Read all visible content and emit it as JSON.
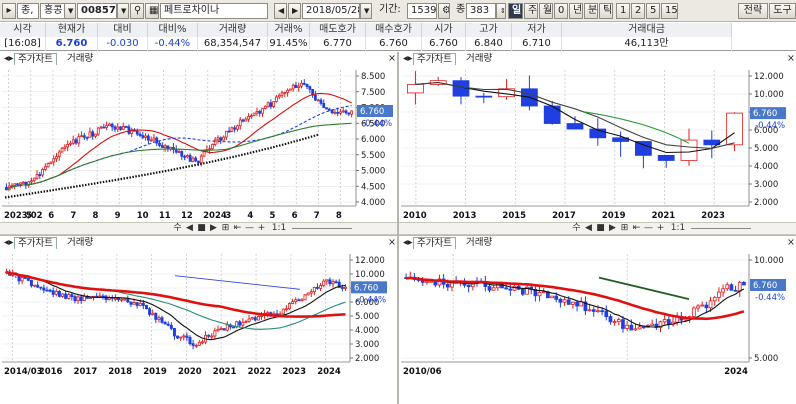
{
  "toolbar": {
    "market_tab": "종,",
    "region": "홍콩",
    "code": "00857",
    "stock_name": "페트로차이나",
    "date": "2018/05/28",
    "period_label": "기간:",
    "period_value": "1539",
    "count_label": "종",
    "count_value": "383",
    "periods": [
      "일",
      "주",
      "월",
      "0",
      "년",
      "분",
      "틱"
    ],
    "minutes": [
      "1",
      "2",
      "5",
      "15"
    ],
    "strategy": "전략",
    "tools": "도구"
  },
  "quote": {
    "headers": [
      "시각",
      "현재가",
      "대비",
      "대비%",
      "거래량",
      "거래%",
      "매도호가",
      "매수호가",
      "시가",
      "고가",
      "저가",
      "거래대금"
    ],
    "values": [
      "[16:08]",
      "6.760",
      "-0.030",
      "-0.44%",
      "68,354,547",
      "91.45%",
      "6.770",
      "6.760",
      "6.760",
      "6.840",
      "6.710",
      "46,113만"
    ]
  },
  "colors": {
    "up": "#e01e1e",
    "down": "#1f3fe0",
    "price_tag": "#4a78c8"
  },
  "panels": [
    {
      "id": "daily",
      "tabs": [
        "주가차트",
        "거래량"
      ],
      "price_label": "6.760",
      "change_label": "-0.44%",
      "y_ticks": [
        "8.500",
        "7.500",
        "7.000",
        "6.500",
        "6.000",
        "5.500",
        "5.000",
        "4.500",
        "4.000"
      ],
      "x_ticks": [
        "2023/02",
        "5",
        "6",
        "7",
        "8",
        "9",
        "10",
        "11",
        "12",
        "2024",
        "3",
        "4",
        "5",
        "6",
        "7",
        "8"
      ]
    },
    {
      "id": "yearly",
      "tabs": [
        "주가차트",
        "거래량"
      ],
      "price_label": "6.760",
      "change_label": "-0.44%",
      "y_ticks": [
        "12.000",
        "10.000",
        "8.000",
        "6.000",
        "5.000",
        "4.000",
        "3.000",
        "2.000"
      ],
      "x_ticks": [
        "2010",
        "2013",
        "2015",
        "2017",
        "2019",
        "2021",
        "2023"
      ]
    },
    {
      "id": "weekly",
      "tabs": [
        "주가차트",
        "거래량"
      ],
      "price_label": "6.760",
      "change_label": "-0.44%",
      "y_ticks": [
        "12.000",
        "10.000",
        "8.000",
        "6.000",
        "5.000",
        "4.000",
        "3.000",
        "2.000"
      ],
      "x_ticks": [
        "2014/03",
        "2016",
        "2017",
        "2018",
        "2019",
        "2020",
        "2021",
        "2022",
        "2023",
        "2024"
      ]
    },
    {
      "id": "monthly",
      "tabs": [
        "주가차트",
        "거래량"
      ],
      "price_label": "6.760",
      "change_label": "-0.44%",
      "y_ticks": [
        "10.000",
        "5.000"
      ],
      "x_ticks": [
        "2010/06",
        "2024"
      ]
    }
  ],
  "control_bar": {
    "scale": "1:1"
  }
}
